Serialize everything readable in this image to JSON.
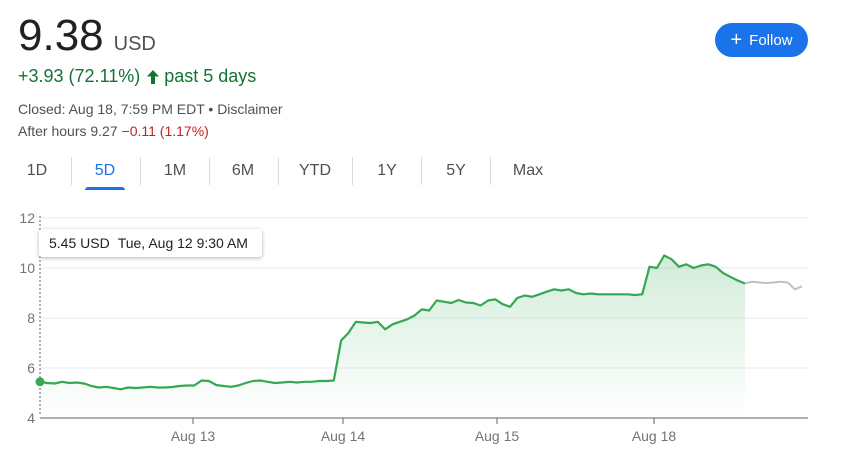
{
  "quote": {
    "price": "9.38",
    "currency": "USD",
    "change": "+3.93 (72.11%)",
    "period": "past 5 days",
    "closed": "Closed: Aug 18, 7:59 PM EDT • Disclaimer",
    "after_hours_label": "After hours 9.27",
    "after_hours_change": "−0.11 (1.17%)",
    "positive_color": "#137333",
    "negative_color": "#c5221f"
  },
  "follow": {
    "label": "Follow",
    "icon": "plus-icon"
  },
  "tabs": [
    {
      "label": "1D",
      "active": false
    },
    {
      "label": "5D",
      "active": true
    },
    {
      "label": "1M",
      "active": false
    },
    {
      "label": "6M",
      "active": false
    },
    {
      "label": "YTD",
      "active": false
    },
    {
      "label": "1Y",
      "active": false
    },
    {
      "label": "5Y",
      "active": false
    },
    {
      "label": "Max",
      "active": false
    }
  ],
  "tooltip": {
    "value": "5.45 USD",
    "time": "Tue, Aug 12 9:30 AM"
  },
  "chart_data": {
    "type": "line",
    "x_labels": [
      "Aug 13",
      "Aug 14",
      "Aug 15",
      "Aug 18"
    ],
    "y_ticks": [
      "4",
      "6",
      "8",
      "10",
      "12"
    ],
    "ylim": [
      4,
      12
    ],
    "grid": true,
    "line_color": "#34a853",
    "after_hours_color": "#bdc1c6",
    "series": [
      {
        "values": [
          5.45,
          5.4,
          5.38,
          5.45,
          5.4,
          5.42,
          5.38,
          5.28,
          5.22,
          5.25,
          5.2,
          5.15,
          5.22,
          5.2,
          5.22,
          5.25,
          5.22,
          5.22,
          5.24,
          5.28,
          5.3,
          5.3,
          5.5,
          5.48,
          5.32,
          5.28,
          5.25,
          5.3,
          5.4,
          5.48,
          5.5,
          5.45,
          5.4,
          5.42,
          5.45,
          5.42,
          5.45,
          5.45,
          5.48,
          5.48,
          5.5,
          7.1,
          7.4,
          7.85,
          7.82,
          7.8,
          7.85,
          7.55,
          7.75,
          7.85,
          7.95,
          8.1,
          8.35,
          8.3,
          8.7,
          8.65,
          8.6,
          8.72,
          8.62,
          8.6,
          8.5,
          8.7,
          8.75,
          8.55,
          8.45,
          8.8,
          8.9,
          8.85,
          8.95,
          9.05,
          9.15,
          9.1,
          9.15,
          9.0,
          8.95,
          8.98,
          8.95,
          8.95,
          8.95,
          8.95,
          8.95,
          8.92,
          8.95,
          10.05,
          10.0,
          10.5,
          10.35,
          10.05,
          10.15,
          10.0,
          10.1,
          10.15,
          10.05,
          9.8,
          9.65,
          9.5,
          9.38
        ]
      },
      {
        "values": [
          9.38,
          9.45,
          9.42,
          9.4,
          9.42,
          9.45,
          9.42,
          9.15,
          9.27
        ]
      }
    ]
  }
}
